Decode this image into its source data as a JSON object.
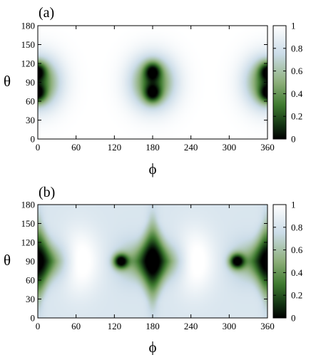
{
  "chart_data": [
    {
      "type": "heatmap",
      "panel_label": "(a)",
      "xlabel": "ϕ",
      "ylabel": "θ",
      "xlim": [
        0,
        360
      ],
      "ylim": [
        0,
        180
      ],
      "xticks": [
        0,
        60,
        120,
        180,
        240,
        300,
        360
      ],
      "yticks": [
        0,
        30,
        60,
        90,
        120,
        150,
        180
      ],
      "colorbar": {
        "range": [
          0,
          1
        ],
        "ticks": [
          0,
          0.2,
          0.4,
          0.6,
          0.8,
          1
        ],
        "low_color": "#000000",
        "mid_color": "#3e7a2f",
        "high_color": "#ffffff"
      },
      "features": [
        {
          "kind": "dark_minimum",
          "phi": 0,
          "theta": 108,
          "value": 0.0
        },
        {
          "kind": "dark_minimum",
          "phi": 0,
          "theta": 72,
          "value": 0.0
        },
        {
          "kind": "dark_minimum",
          "phi": 180,
          "theta": 108,
          "value": 0.0
        },
        {
          "kind": "dark_minimum",
          "phi": 180,
          "theta": 72,
          "value": 0.0
        },
        {
          "kind": "dark_minimum",
          "phi": 360,
          "theta": 108,
          "value": 0.0
        },
        {
          "kind": "dark_minimum",
          "phi": 360,
          "theta": 72,
          "value": 0.0
        },
        {
          "kind": "low_band",
          "phi": 0,
          "theta": 90,
          "value": 0.3
        },
        {
          "kind": "low_band",
          "phi": 180,
          "theta": 90,
          "value": 0.3
        },
        {
          "kind": "low_band",
          "phi": 360,
          "theta": 90,
          "value": 0.3
        }
      ]
    },
    {
      "type": "heatmap",
      "panel_label": "(b)",
      "xlabel": "ϕ",
      "ylabel": "θ",
      "xlim": [
        0,
        360
      ],
      "ylim": [
        0,
        180
      ],
      "xticks": [
        0,
        60,
        120,
        180,
        240,
        300,
        360
      ],
      "yticks": [
        0,
        30,
        60,
        90,
        120,
        150,
        180
      ],
      "colorbar": {
        "range": [
          0,
          1
        ],
        "ticks": [
          0,
          0.2,
          0.4,
          0.6,
          0.8,
          1
        ],
        "low_color": "#000000",
        "mid_color": "#3e7a2f",
        "high_color": "#ffffff"
      },
      "features": [
        {
          "kind": "dark_minimum",
          "phi": 0,
          "theta": 90,
          "value": 0.0
        },
        {
          "kind": "dark_minimum",
          "phi": 130,
          "theta": 90,
          "value": 0.0
        },
        {
          "kind": "dark_minimum",
          "phi": 180,
          "theta": 90,
          "value": 0.0
        },
        {
          "kind": "dark_minimum",
          "phi": 312,
          "theta": 90,
          "value": 0.0
        },
        {
          "kind": "dark_minimum",
          "phi": 360,
          "theta": 90,
          "value": 0.0
        },
        {
          "kind": "bright_maximum",
          "phi": 65,
          "theta": 90,
          "value": 1.0
        },
        {
          "kind": "bright_maximum",
          "phi": 245,
          "theta": 90,
          "value": 1.0
        }
      ]
    }
  ]
}
